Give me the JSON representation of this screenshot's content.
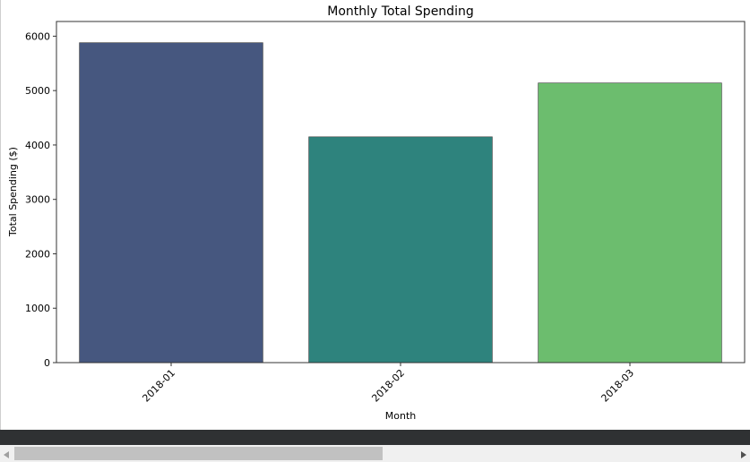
{
  "chart_data": {
    "type": "bar",
    "title": "Monthly Total Spending",
    "xlabel": "Month",
    "ylabel": "Total Spending ($)",
    "categories": [
      "2018-01",
      "2018-02",
      "2018-03"
    ],
    "values": [
      5880,
      4150,
      5140
    ],
    "colors": [
      "#46577f",
      "#2e837d",
      "#6cbd6e"
    ],
    "ylim": [
      0,
      6270
    ],
    "yticks": [
      0,
      1000,
      2000,
      3000,
      4000,
      5000,
      6000
    ],
    "xtick_rotation": 45,
    "grid": false,
    "legend": "none"
  },
  "scrollbar": {
    "left_icon": "triangle-left-icon",
    "right_icon": "triangle-right-icon",
    "thumb_fraction": 0.51
  }
}
